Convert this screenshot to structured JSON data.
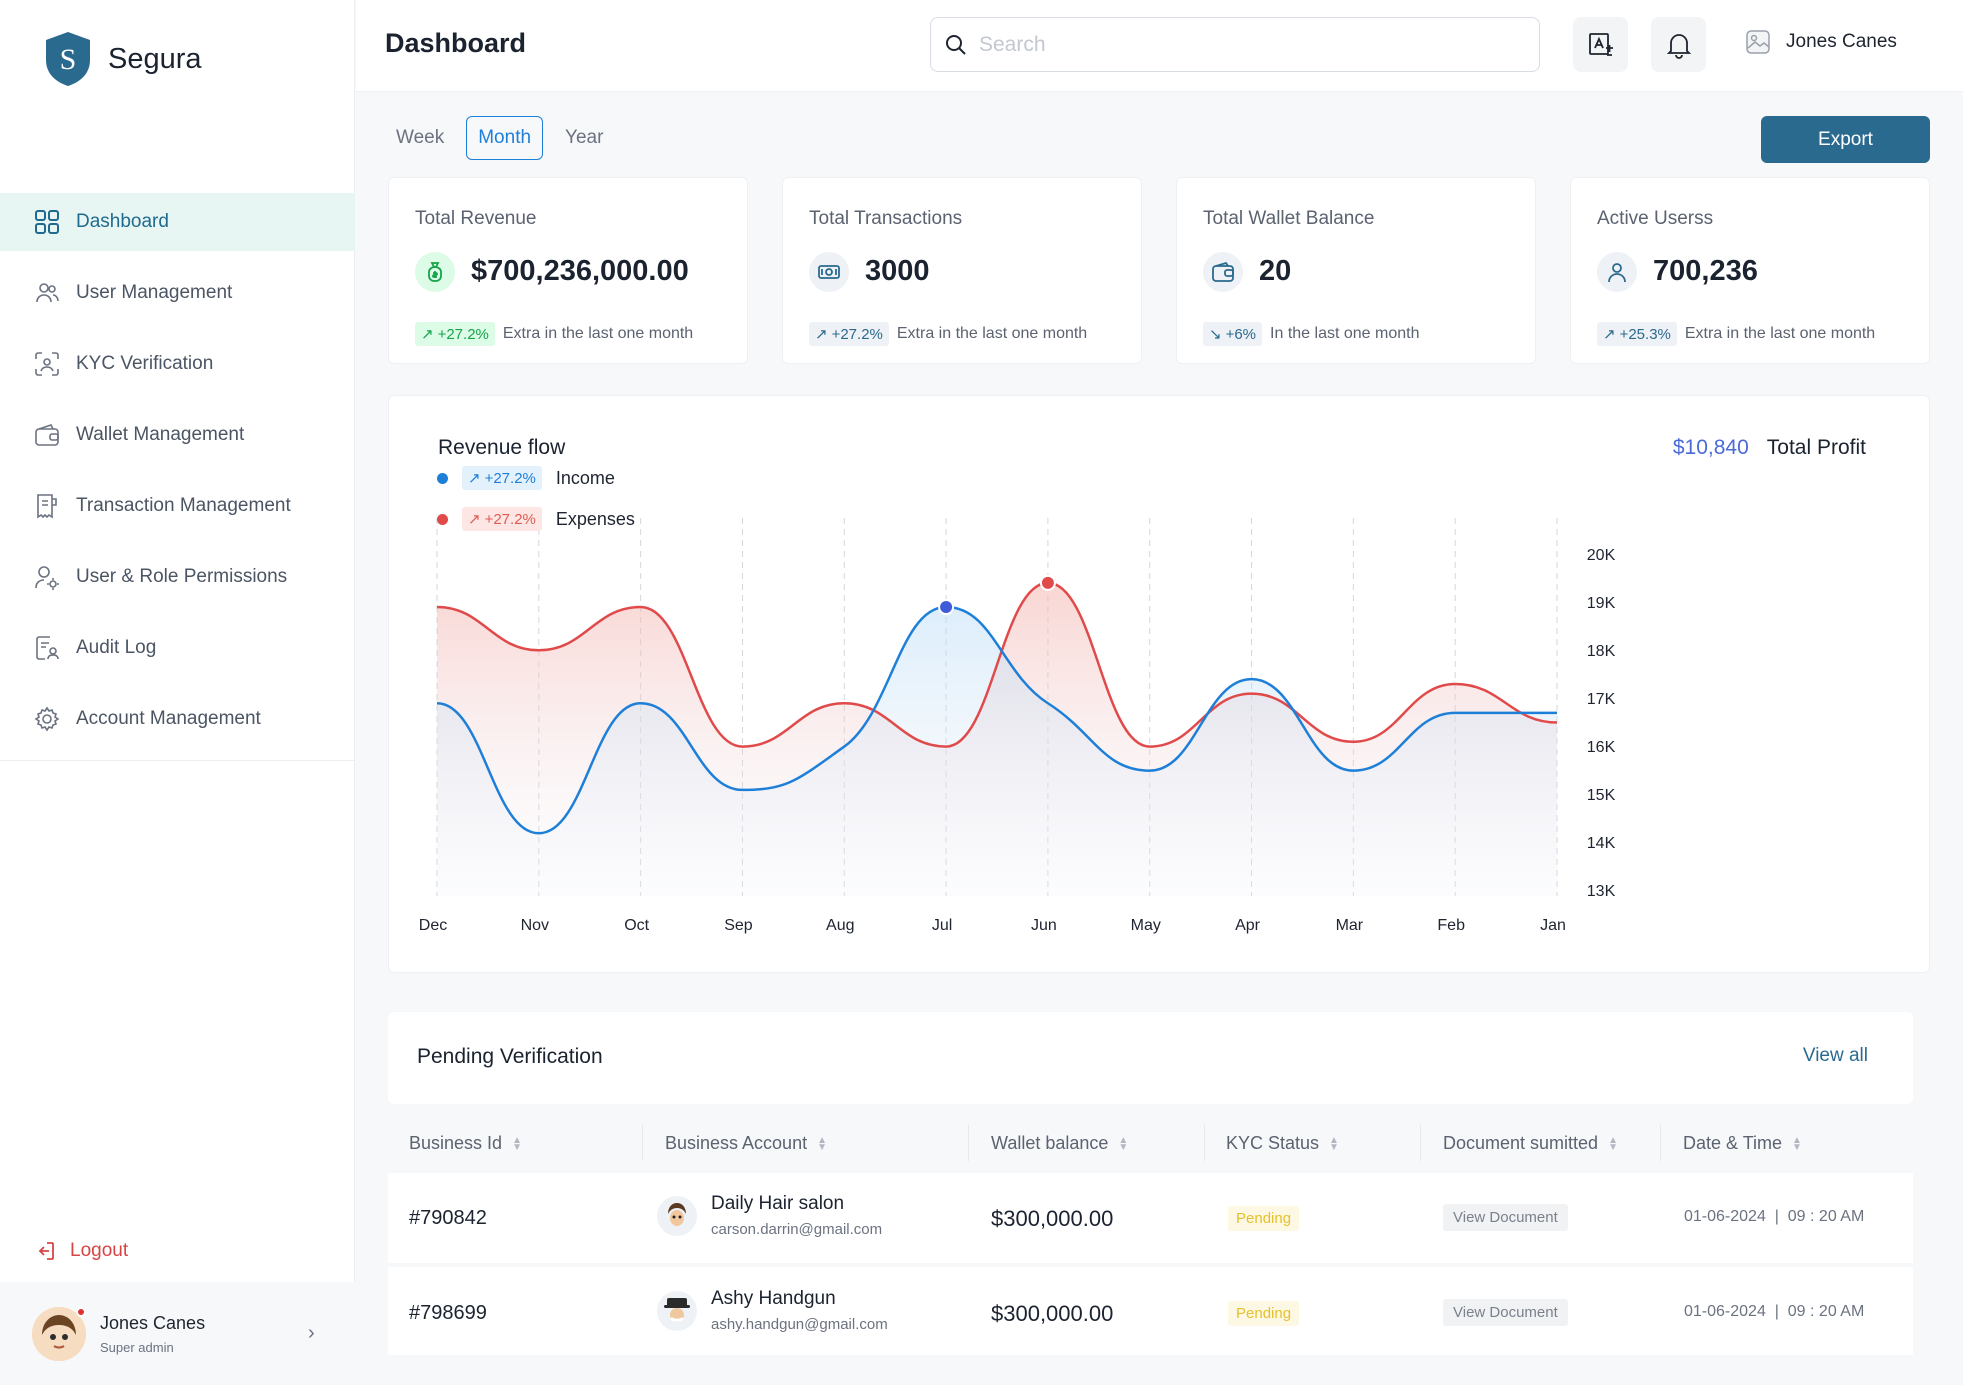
{
  "brand": {
    "name": "Segura",
    "logo_letter": "S"
  },
  "sidebar": {
    "items": [
      {
        "label": "Dashboard",
        "icon": "grid-icon",
        "active": true
      },
      {
        "label": "User Management",
        "icon": "users-icon"
      },
      {
        "label": "KYC Verification",
        "icon": "face-scan-icon"
      },
      {
        "label": "Wallet Management",
        "icon": "wallet-icon"
      },
      {
        "label": "Transaction Management",
        "icon": "receipt-icon"
      },
      {
        "label": "User & Role Permissions",
        "icon": "user-gear-icon"
      },
      {
        "label": "Audit Log",
        "icon": "document-user-icon"
      },
      {
        "label": "Account Management",
        "icon": "gear-icon"
      }
    ],
    "logout_label": "Logout",
    "profile": {
      "name": "Jones Canes",
      "role": "Super admin"
    }
  },
  "header": {
    "title": "Dashboard",
    "search_placeholder": "Search",
    "user_name": "Jones Canes"
  },
  "periods": {
    "tabs": [
      "Week",
      "Month",
      "Year"
    ],
    "active": "Month",
    "export_label": "Export"
  },
  "stats": [
    {
      "label": "Total Revenue",
      "value": "$700,236,000.00",
      "change": "+27.2%",
      "note": "Extra in the last one month",
      "icon": "money-bag-icon",
      "accent": "#16a34a"
    },
    {
      "label": "Total Transactions",
      "value": "3000",
      "change": "+27.2%",
      "note": "Extra in the last one month",
      "icon": "cash-icon",
      "accent": "#2b6a8f"
    },
    {
      "label": "Total Wallet Balance",
      "value": "20",
      "change": "+6%",
      "note": "In the last one month",
      "icon": "wallet-icon",
      "accent": "#2b6a8f"
    },
    {
      "label": "Active Userss",
      "value": "700,236",
      "change": "+25.3%",
      "note": "Extra in the last one month",
      "icon": "user-icon",
      "accent": "#2b6a8f"
    }
  ],
  "revenue": {
    "title": "Revenue flow",
    "total_profit_value": "$10,840",
    "total_profit_label": "Total Profit",
    "legend": [
      {
        "name": "Income",
        "change": "+27.2%",
        "color": "#1e7fd8"
      },
      {
        "name": "Expenses",
        "change": "+27.2%",
        "color": "#e04a4a"
      }
    ]
  },
  "chart_data": {
    "type": "line",
    "categories": [
      "Dec",
      "Nov",
      "Oct",
      "Sep",
      "Aug",
      "Jul",
      "Jun",
      "May",
      "Apr",
      "Mar",
      "Feb",
      "Jan"
    ],
    "yticks": [
      "20K",
      "19K",
      "18K",
      "17K",
      "16K",
      "15K",
      "14K",
      "13K"
    ],
    "ylim": [
      13000,
      20000
    ],
    "grid": "vertical dashed",
    "series": [
      {
        "name": "Income",
        "color": "#1e7fd8",
        "values": [
          16900,
          14200,
          16900,
          15100,
          16000,
          18900,
          16900,
          15500,
          17400,
          15500,
          16700,
          16700
        ]
      },
      {
        "name": "Expenses",
        "color": "#e04a4a",
        "values": [
          18900,
          18000,
          18900,
          16000,
          16900,
          16000,
          19400,
          16000,
          17100,
          16100,
          17300,
          16500
        ]
      }
    ],
    "highlights": [
      {
        "series": "Income",
        "category": "Jul"
      },
      {
        "series": "Expenses",
        "category": "Jun"
      }
    ]
  },
  "pending": {
    "title": "Pending Verification",
    "view_all_label": "View all",
    "columns": [
      "Business Id",
      "Business Account",
      "Wallet balance",
      "KYC Status",
      "Document sumitted",
      "Date & Time"
    ],
    "rows": [
      {
        "id": "#790842",
        "name": "Daily Hair salon",
        "email": "carson.darrin@gmail.com",
        "balance": "$300,000.00",
        "status": "Pending",
        "doc": "View Document",
        "date": "01-06-2024  |  09 : 20 AM"
      },
      {
        "id": "#798699",
        "name": "Ashy Handgun",
        "email": "ashy.handgun@gmail.com",
        "balance": "$300,000.00",
        "status": "Pending",
        "doc": "View Document",
        "date": "01-06-2024  |  09 : 20 AM"
      }
    ]
  }
}
